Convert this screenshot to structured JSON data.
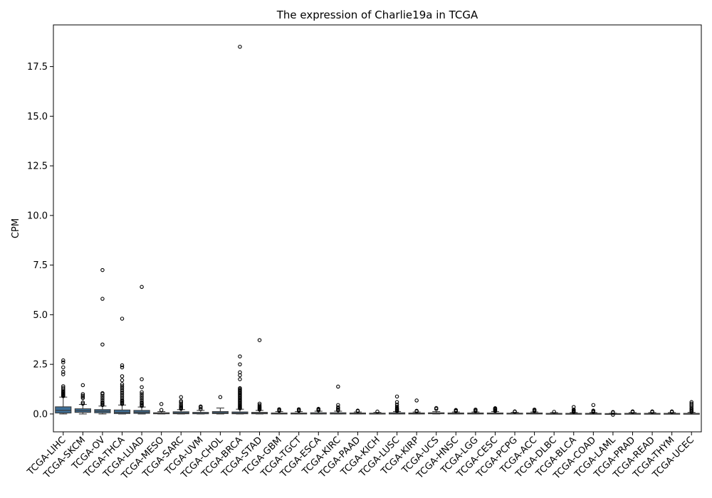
{
  "chart_data": {
    "type": "box",
    "title": "The expression of Charlie19a in TCGA",
    "xlabel": "",
    "ylabel": "CPM",
    "ylim": [
      -0.9,
      19.6
    ],
    "yticks": [
      0.0,
      2.5,
      5.0,
      7.5,
      10.0,
      12.5,
      15.0,
      17.5
    ],
    "ytick_labels": [
      "0.0",
      "2.5",
      "5.0",
      "7.5",
      "10.0",
      "12.5",
      "15.0",
      "17.5"
    ],
    "grid": false,
    "colors": {
      "box_fill": "#3d6f98",
      "line": "#3a3a3a",
      "outlier": "#000000"
    },
    "categories": [
      "TCGA-LIHC",
      "TCGA-SKCM",
      "TCGA-OV",
      "TCGA-THCA",
      "TCGA-LUAD",
      "TCGA-MESO",
      "TCGA-SARC",
      "TCGA-UVM",
      "TCGA-CHOL",
      "TCGA-BRCA",
      "TCGA-STAD",
      "TCGA-GBM",
      "TCGA-TGCT",
      "TCGA-ESCA",
      "TCGA-KIRC",
      "TCGA-PAAD",
      "TCGA-KICH",
      "TCGA-LUSC",
      "TCGA-KIRP",
      "TCGA-UCS",
      "TCGA-HNSC",
      "TCGA-LGG",
      "TCGA-CESC",
      "TCGA-PCPG",
      "TCGA-ACC",
      "TCGA-DLBC",
      "TCGA-BLCA",
      "TCGA-COAD",
      "TCGA-LAML",
      "TCGA-PRAD",
      "TCGA-READ",
      "TCGA-THYM",
      "TCGA-UCEC"
    ],
    "boxes": [
      {
        "whislo": 0.0,
        "q1": 0.05,
        "med": 0.18,
        "q3": 0.36,
        "whishi": 0.85,
        "fliers": [
          0.9,
          0.93,
          0.96,
          1.0,
          1.04,
          1.08,
          1.12,
          1.18,
          1.25,
          1.32,
          1.4,
          2.0,
          2.12,
          2.35,
          2.6,
          2.7
        ]
      },
      {
        "whislo": 0.0,
        "q1": 0.08,
        "med": 0.16,
        "q3": 0.26,
        "whishi": 0.48,
        "fliers": [
          0.52,
          0.58,
          0.8,
          0.86,
          0.92,
          1.0,
          1.45
        ]
      },
      {
        "whislo": 0.0,
        "q1": 0.06,
        "med": 0.14,
        "q3": 0.22,
        "whishi": 0.4,
        "fliers": [
          0.45,
          0.5,
          0.55,
          0.6,
          0.7,
          0.8,
          0.9,
          1.0,
          1.05,
          3.5,
          5.8,
          7.25
        ]
      },
      {
        "whislo": 0.0,
        "q1": 0.02,
        "med": 0.08,
        "q3": 0.2,
        "whishi": 0.45,
        "fliers": [
          0.5,
          0.55,
          0.6,
          0.65,
          0.7,
          0.8,
          0.9,
          1.0,
          1.1,
          1.2,
          1.3,
          1.4,
          1.5,
          1.7,
          1.9,
          2.35,
          2.45,
          4.8
        ]
      },
      {
        "whislo": 0.0,
        "q1": 0.03,
        "med": 0.09,
        "q3": 0.18,
        "whishi": 0.35,
        "fliers": [
          0.4,
          0.45,
          0.5,
          0.55,
          0.6,
          0.7,
          0.8,
          0.9,
          1.0,
          1.1,
          1.35,
          1.75,
          6.4
        ]
      },
      {
        "whislo": 0.0,
        "q1": 0.01,
        "med": 0.03,
        "q3": 0.06,
        "whishi": 0.12,
        "fliers": [
          0.2,
          0.5
        ]
      },
      {
        "whislo": 0.0,
        "q1": 0.01,
        "med": 0.05,
        "q3": 0.11,
        "whishi": 0.22,
        "fliers": [
          0.26,
          0.3,
          0.35,
          0.4,
          0.48,
          0.58,
          0.65,
          0.85
        ]
      },
      {
        "whislo": 0.0,
        "q1": 0.01,
        "med": 0.03,
        "q3": 0.08,
        "whishi": 0.18,
        "fliers": [
          0.25,
          0.33,
          0.38
        ]
      },
      {
        "whislo": 0.0,
        "q1": 0.02,
        "med": 0.06,
        "q3": 0.12,
        "whishi": 0.3,
        "fliers": [
          0.85
        ]
      },
      {
        "whislo": 0.0,
        "q1": 0.01,
        "med": 0.04,
        "q3": 0.1,
        "whishi": 0.24,
        "fliers": [
          0.28,
          0.32,
          0.36,
          0.4,
          0.45,
          0.5,
          0.55,
          0.6,
          0.65,
          0.7,
          0.75,
          0.8,
          0.85,
          0.9,
          0.95,
          1.0,
          1.05,
          1.1,
          1.15,
          1.2,
          1.25,
          1.3,
          1.75,
          1.95,
          2.1,
          2.5,
          2.9,
          18.5
        ]
      },
      {
        "whislo": 0.0,
        "q1": 0.01,
        "med": 0.04,
        "q3": 0.08,
        "whishi": 0.18,
        "fliers": [
          0.22,
          0.26,
          0.3,
          0.34,
          0.38,
          0.44,
          0.52,
          3.72
        ]
      },
      {
        "whislo": 0.0,
        "q1": 0.0,
        "med": 0.02,
        "q3": 0.05,
        "whishi": 0.12,
        "fliers": [
          0.16,
          0.2,
          0.24
        ]
      },
      {
        "whislo": 0.0,
        "q1": 0.0,
        "med": 0.02,
        "q3": 0.05,
        "whishi": 0.12,
        "fliers": [
          0.16,
          0.2,
          0.24
        ]
      },
      {
        "whislo": 0.0,
        "q1": 0.0,
        "med": 0.02,
        "q3": 0.06,
        "whishi": 0.14,
        "fliers": [
          0.18,
          0.22,
          0.26
        ]
      },
      {
        "whislo": 0.0,
        "q1": 0.0,
        "med": 0.02,
        "q3": 0.06,
        "whishi": 0.14,
        "fliers": [
          0.18,
          0.22,
          0.28,
          0.34,
          0.45,
          1.38
        ]
      },
      {
        "whislo": 0.0,
        "q1": 0.0,
        "med": 0.02,
        "q3": 0.05,
        "whishi": 0.1,
        "fliers": [
          0.14,
          0.17
        ]
      },
      {
        "whislo": 0.0,
        "q1": 0.0,
        "med": 0.01,
        "q3": 0.04,
        "whishi": 0.08,
        "fliers": [
          0.12
        ]
      },
      {
        "whislo": 0.0,
        "q1": 0.0,
        "med": 0.02,
        "q3": 0.06,
        "whishi": 0.12,
        "fliers": [
          0.15,
          0.18,
          0.22,
          0.26,
          0.3,
          0.38,
          0.48,
          0.6,
          0.88
        ]
      },
      {
        "whislo": 0.0,
        "q1": 0.0,
        "med": 0.02,
        "q3": 0.05,
        "whishi": 0.1,
        "fliers": [
          0.13,
          0.16,
          0.68
        ]
      },
      {
        "whislo": 0.0,
        "q1": 0.01,
        "med": 0.03,
        "q3": 0.06,
        "whishi": 0.12,
        "fliers": [
          0.25,
          0.3
        ]
      },
      {
        "whislo": 0.0,
        "q1": 0.0,
        "med": 0.02,
        "q3": 0.05,
        "whishi": 0.1,
        "fliers": [
          0.14,
          0.17,
          0.2
        ]
      },
      {
        "whislo": 0.0,
        "q1": 0.0,
        "med": 0.02,
        "q3": 0.05,
        "whishi": 0.1,
        "fliers": [
          0.14,
          0.18,
          0.22
        ]
      },
      {
        "whislo": 0.0,
        "q1": 0.0,
        "med": 0.02,
        "q3": 0.05,
        "whishi": 0.12,
        "fliers": [
          0.15,
          0.18,
          0.22,
          0.26,
          0.29
        ]
      },
      {
        "whislo": 0.0,
        "q1": 0.0,
        "med": 0.01,
        "q3": 0.04,
        "whishi": 0.08,
        "fliers": [
          0.11,
          0.13
        ]
      },
      {
        "whislo": 0.0,
        "q1": 0.0,
        "med": 0.02,
        "q3": 0.05,
        "whishi": 0.1,
        "fliers": [
          0.14,
          0.18,
          0.22
        ]
      },
      {
        "whislo": 0.0,
        "q1": 0.0,
        "med": 0.01,
        "q3": 0.03,
        "whishi": 0.07,
        "fliers": [
          0.11
        ]
      },
      {
        "whislo": 0.0,
        "q1": 0.0,
        "med": 0.01,
        "q3": 0.03,
        "whishi": 0.07,
        "fliers": [
          0.1,
          0.13,
          0.17,
          0.22,
          0.35
        ]
      },
      {
        "whislo": 0.0,
        "q1": 0.0,
        "med": 0.01,
        "q3": 0.03,
        "whishi": 0.07,
        "fliers": [
          0.1,
          0.13,
          0.17,
          0.45
        ]
      },
      {
        "whislo": -0.02,
        "q1": -0.01,
        "med": 0.0,
        "q3": 0.02,
        "whishi": 0.04,
        "fliers": [
          -0.04,
          0.07,
          0.1
        ]
      },
      {
        "whislo": 0.0,
        "q1": 0.0,
        "med": 0.01,
        "q3": 0.03,
        "whishi": 0.07,
        "fliers": [
          0.1,
          0.13
        ]
      },
      {
        "whislo": 0.0,
        "q1": 0.0,
        "med": 0.01,
        "q3": 0.03,
        "whishi": 0.07,
        "fliers": [
          0.1,
          0.13
        ]
      },
      {
        "whislo": 0.0,
        "q1": 0.0,
        "med": 0.01,
        "q3": 0.03,
        "whishi": 0.07,
        "fliers": [
          0.1,
          0.13
        ]
      },
      {
        "whislo": 0.0,
        "q1": 0.0,
        "med": 0.01,
        "q3": 0.03,
        "whishi": 0.08,
        "fliers": [
          0.11,
          0.15,
          0.2,
          0.25,
          0.3,
          0.38,
          0.45,
          0.52,
          0.6
        ]
      }
    ]
  }
}
